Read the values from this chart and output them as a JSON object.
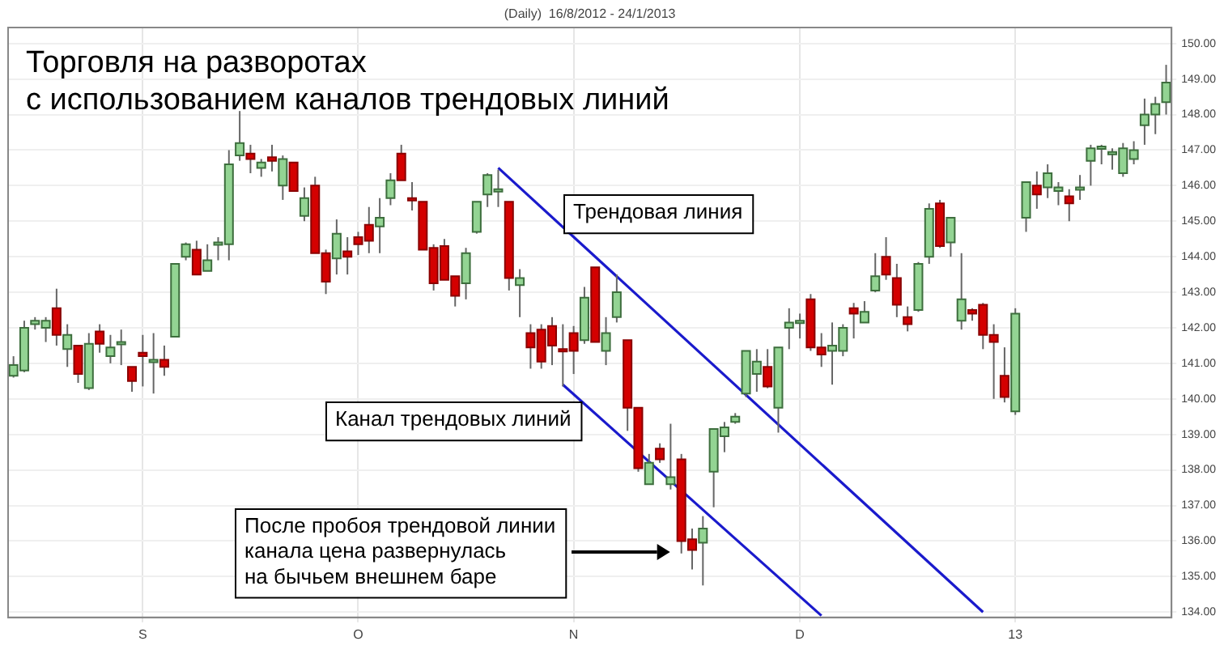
{
  "chart_data": {
    "type": "candlestick",
    "title": "Торговля на разворотах\nс использованием каналов трендовых линий",
    "subtitle": "(Daily)  16/8/2012 - 24/1/2013",
    "categories": [
      null,
      null,
      null,
      null,
      null,
      null,
      null,
      null,
      null,
      null,
      null,
      null,
      "S",
      null,
      null,
      null,
      null,
      null,
      null,
      null,
      null,
      null,
      null,
      null,
      null,
      null,
      null,
      null,
      null,
      null,
      null,
      null,
      "O",
      null,
      null,
      null,
      null,
      null,
      null,
      null,
      null,
      null,
      null,
      null,
      null,
      null,
      null,
      null,
      null,
      null,
      null,
      null,
      "N",
      null,
      null,
      null,
      null,
      null,
      null,
      null,
      null,
      null,
      null,
      null,
      null,
      null,
      null,
      null,
      null,
      null,
      null,
      null,
      null,
      "D",
      null,
      null,
      null,
      null,
      null,
      null,
      null,
      null,
      null,
      null,
      null,
      null,
      null,
      null,
      null,
      null,
      null,
      null,
      null,
      "13",
      null,
      null,
      null,
      null,
      null,
      null,
      null,
      null,
      null,
      null,
      null,
      null,
      null,
      null
    ],
    "ohlc": [
      [
        140.65,
        141.2,
        140.6,
        140.95
      ],
      [
        140.8,
        142.2,
        140.75,
        142.0
      ],
      [
        142.1,
        142.3,
        141.95,
        142.2
      ],
      [
        142.0,
        142.3,
        141.6,
        142.2
      ],
      [
        142.55,
        143.1,
        141.5,
        141.8
      ],
      [
        141.4,
        142.1,
        140.9,
        141.8
      ],
      [
        141.5,
        141.5,
        140.45,
        140.7
      ],
      [
        140.3,
        141.85,
        140.25,
        141.55
      ],
      [
        141.9,
        142.1,
        141.3,
        141.55
      ],
      [
        141.2,
        141.8,
        141.0,
        141.45
      ],
      [
        141.55,
        141.95,
        140.95,
        141.6
      ],
      [
        140.9,
        140.9,
        140.2,
        140.5
      ],
      [
        141.3,
        141.8,
        140.35,
        141.2
      ],
      [
        141.05,
        141.85,
        140.15,
        141.1
      ],
      [
        141.1,
        141.5,
        140.65,
        140.9
      ],
      [
        141.75,
        143.8,
        141.75,
        143.8
      ],
      [
        144.0,
        144.4,
        143.9,
        144.35
      ],
      [
        144.2,
        144.45,
        143.5,
        143.5
      ],
      [
        143.6,
        144.35,
        143.6,
        143.9
      ],
      [
        144.35,
        144.55,
        143.9,
        144.4
      ],
      [
        144.35,
        147.0,
        143.9,
        146.6
      ],
      [
        146.85,
        148.1,
        146.7,
        147.2
      ],
      [
        146.9,
        147.15,
        146.35,
        146.75
      ],
      [
        146.5,
        146.75,
        146.25,
        146.65
      ],
      [
        146.8,
        147.15,
        146.4,
        146.7
      ],
      [
        146.0,
        146.85,
        145.6,
        146.75
      ],
      [
        146.65,
        146.65,
        145.85,
        145.85
      ],
      [
        145.15,
        145.95,
        145.0,
        145.65
      ],
      [
        146.0,
        146.25,
        144.1,
        144.1
      ],
      [
        144.1,
        144.2,
        142.95,
        143.3
      ],
      [
        143.95,
        145.05,
        143.5,
        144.65
      ],
      [
        144.15,
        144.55,
        143.5,
        144.0
      ],
      [
        144.55,
        144.7,
        144.05,
        144.35
      ],
      [
        144.9,
        145.4,
        144.1,
        144.45
      ],
      [
        144.85,
        145.65,
        144.1,
        145.1
      ],
      [
        145.65,
        146.35,
        145.45,
        146.15
      ],
      [
        146.9,
        147.15,
        146.15,
        146.15
      ],
      [
        145.65,
        146.1,
        145.3,
        145.6
      ],
      [
        145.55,
        145.55,
        144.2,
        144.2
      ],
      [
        144.25,
        144.35,
        143.05,
        143.25
      ],
      [
        144.3,
        144.5,
        143.35,
        143.35
      ],
      [
        143.45,
        143.45,
        142.6,
        142.9
      ],
      [
        143.25,
        144.25,
        142.8,
        144.1
      ],
      [
        144.7,
        145.55,
        144.65,
        145.55
      ],
      [
        145.75,
        146.35,
        145.4,
        146.3
      ],
      [
        145.85,
        146.45,
        145.4,
        145.9
      ],
      [
        145.55,
        145.55,
        143.05,
        143.4
      ],
      [
        143.2,
        143.65,
        142.3,
        143.4
      ],
      [
        141.85,
        142.1,
        140.85,
        141.45
      ],
      [
        141.95,
        142.1,
        140.85,
        141.05
      ],
      [
        142.05,
        142.3,
        140.95,
        141.5
      ],
      [
        141.4,
        142.1,
        140.35,
        141.35
      ],
      [
        141.85,
        142.05,
        140.7,
        141.35
      ],
      [
        141.65,
        143.15,
        141.55,
        142.85
      ],
      [
        143.7,
        143.7,
        141.6,
        141.6
      ],
      [
        141.35,
        142.3,
        140.95,
        141.85
      ],
      [
        142.3,
        143.5,
        142.15,
        143.0
      ],
      [
        141.65,
        141.65,
        139.1,
        139.75
      ],
      [
        139.75,
        139.75,
        137.95,
        138.05
      ],
      [
        137.6,
        138.45,
        137.6,
        138.2
      ],
      [
        138.6,
        138.75,
        138.2,
        138.3
      ],
      [
        137.6,
        139.3,
        137.45,
        137.8
      ],
      [
        138.3,
        138.45,
        135.65,
        136.0
      ],
      [
        136.05,
        136.35,
        135.2,
        135.75
      ],
      [
        135.95,
        136.7,
        134.75,
        136.35
      ],
      [
        137.95,
        139.15,
        136.95,
        139.15
      ],
      [
        138.95,
        139.35,
        138.5,
        139.2
      ],
      [
        139.35,
        139.6,
        139.3,
        139.5
      ],
      [
        140.15,
        141.35,
        140.05,
        141.35
      ],
      [
        140.7,
        141.4,
        140.2,
        141.05
      ],
      [
        140.9,
        141.4,
        140.3,
        140.35
      ],
      [
        139.75,
        141.45,
        139.05,
        141.45
      ],
      [
        142.0,
        142.55,
        141.4,
        142.15
      ],
      [
        142.15,
        142.4,
        141.7,
        142.2
      ],
      [
        142.8,
        142.95,
        141.35,
        141.45
      ],
      [
        141.45,
        141.85,
        140.9,
        141.25
      ],
      [
        141.35,
        142.15,
        140.4,
        141.5
      ],
      [
        141.35,
        142.1,
        141.2,
        142.0
      ],
      [
        142.55,
        142.7,
        141.7,
        142.4
      ],
      [
        142.15,
        142.75,
        142.15,
        142.45
      ],
      [
        143.05,
        144.1,
        143.0,
        143.45
      ],
      [
        144.0,
        144.55,
        143.35,
        143.5
      ],
      [
        143.4,
        143.8,
        142.3,
        142.65
      ],
      [
        142.3,
        142.6,
        141.9,
        142.1
      ],
      [
        142.5,
        143.85,
        142.45,
        143.8
      ],
      [
        144.0,
        145.5,
        143.8,
        145.35
      ],
      [
        145.5,
        145.6,
        144.25,
        144.3
      ],
      [
        144.4,
        145.1,
        144.0,
        145.1
      ],
      [
        142.2,
        144.1,
        141.95,
        142.8
      ],
      [
        142.5,
        142.55,
        142.2,
        142.4
      ],
      [
        142.65,
        142.7,
        141.4,
        141.8
      ],
      [
        141.8,
        142.1,
        140.0,
        141.6
      ],
      [
        140.65,
        141.45,
        139.9,
        140.05
      ],
      [
        139.65,
        142.55,
        139.55,
        142.4
      ],
      [
        145.1,
        146.1,
        144.7,
        146.1
      ],
      [
        146.0,
        146.4,
        145.35,
        145.75
      ],
      [
        145.95,
        146.6,
        145.65,
        146.35
      ],
      [
        145.85,
        146.1,
        145.45,
        145.95
      ],
      [
        145.7,
        145.9,
        145.0,
        145.5
      ],
      [
        145.9,
        146.3,
        145.6,
        145.95
      ],
      [
        146.7,
        147.15,
        146.0,
        147.05
      ],
      [
        147.05,
        147.15,
        146.6,
        147.1
      ],
      [
        146.9,
        147.05,
        146.45,
        146.95
      ],
      [
        146.35,
        147.2,
        146.25,
        147.05
      ],
      [
        146.75,
        147.25,
        146.6,
        147.0
      ],
      [
        147.7,
        148.45,
        147.15,
        148.0
      ],
      [
        148.0,
        148.5,
        147.45,
        148.3
      ],
      [
        148.35,
        149.4,
        148.0,
        148.9
      ]
    ],
    "series": [
      {
        "type": "line",
        "color": "#1a1acc",
        "values": [
          null,
          null,
          null,
          null,
          null,
          null,
          null,
          null,
          null,
          null,
          null,
          null,
          null,
          null,
          null,
          null,
          null,
          null,
          null,
          null,
          null,
          null,
          null,
          null,
          null,
          null,
          null,
          null,
          null,
          null,
          null,
          null,
          null,
          null,
          null,
          null,
          null,
          null,
          null,
          null,
          null,
          null,
          null,
          null,
          null,
          146.5,
          null,
          null,
          null,
          null,
          null,
          null,
          null,
          null,
          null,
          null,
          null,
          null,
          null,
          null,
          null,
          null,
          null,
          null,
          null,
          null,
          null,
          null,
          null,
          null,
          null,
          null,
          null,
          null,
          null,
          null,
          null,
          null,
          null,
          null,
          null,
          null,
          null,
          null,
          null,
          null,
          null,
          null,
          null,
          null,
          134.0,
          null,
          null,
          null,
          null,
          null,
          null,
          null,
          null,
          null,
          null,
          null,
          null,
          null,
          null,
          null,
          null,
          null
        ]
      },
      {
        "type": "line",
        "color": "#1a1acc",
        "values": [
          null,
          null,
          null,
          null,
          null,
          null,
          null,
          null,
          null,
          null,
          null,
          null,
          null,
          null,
          null,
          null,
          null,
          null,
          null,
          null,
          null,
          null,
          null,
          null,
          null,
          null,
          null,
          null,
          null,
          null,
          null,
          null,
          null,
          null,
          null,
          null,
          null,
          null,
          null,
          null,
          null,
          null,
          null,
          null,
          null,
          null,
          null,
          null,
          null,
          null,
          null,
          140.4,
          null,
          null,
          null,
          null,
          null,
          null,
          null,
          null,
          null,
          null,
          null,
          null,
          null,
          null,
          null,
          null,
          null,
          null,
          null,
          null,
          null,
          null,
          null,
          133.9,
          null,
          null,
          null,
          null,
          null,
          null,
          null,
          null,
          null,
          null,
          null,
          null,
          null,
          null,
          null,
          null,
          null,
          null,
          null,
          null,
          null,
          null,
          null,
          null,
          null,
          null,
          null,
          null,
          null,
          null,
          null,
          null
        ]
      }
    ],
    "ylim": [
      133.85,
      150.45
    ],
    "yticks": [
      {
        "value": 134,
        "label": "134.00"
      },
      {
        "value": 135,
        "label": "135.00"
      },
      {
        "value": 136,
        "label": "136.00"
      },
      {
        "value": 137,
        "label": "137.00"
      },
      {
        "value": 138,
        "label": "138.00"
      },
      {
        "value": 139,
        "label": "139.00"
      },
      {
        "value": 140,
        "label": "140.00"
      },
      {
        "value": 141,
        "label": "141.00"
      },
      {
        "value": 142,
        "label": "142.00"
      },
      {
        "value": 143,
        "label": "143.00"
      },
      {
        "value": 144,
        "label": "144.00"
      },
      {
        "value": 145,
        "label": "145.00"
      },
      {
        "value": 146,
        "label": "146.00"
      },
      {
        "value": 147,
        "label": "147.00"
      },
      {
        "value": 148,
        "label": "148.00"
      },
      {
        "value": 149,
        "label": "149.00"
      },
      {
        "value": 150,
        "label": "150.00"
      }
    ],
    "annotations": [
      "Трендовая линия",
      "Канал трендовых линий",
      "После пробоя трендовой линии\nканала цена развернулась\nна бычьем внешнем баре"
    ],
    "grid": true,
    "legend": false,
    "marker": "none",
    "line_style": "solid"
  }
}
